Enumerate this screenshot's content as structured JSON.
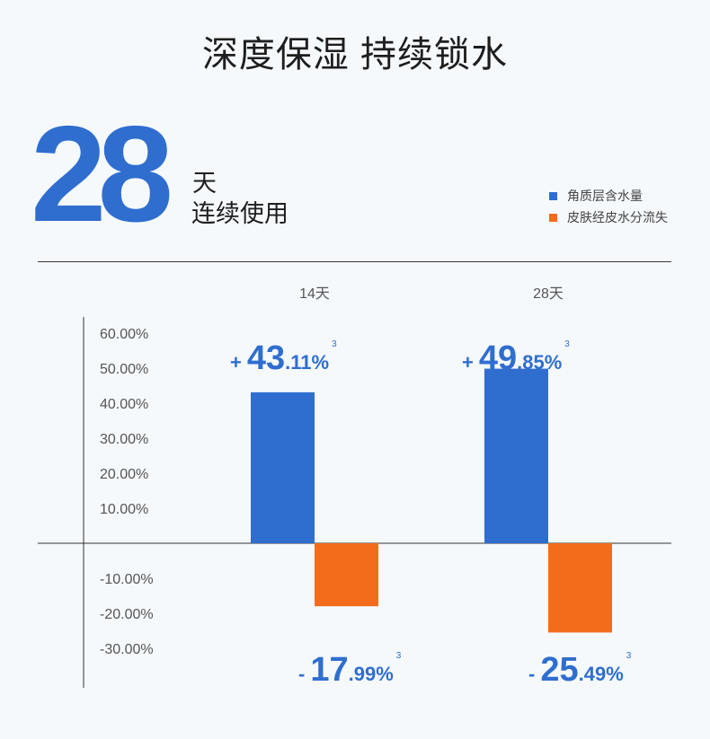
{
  "headline": "深度保湿 持续锁水",
  "days_number": "28",
  "days_unit": "天",
  "days_caption": "连续使用",
  "colors": {
    "blue": "#2f6ecf",
    "orange": "#f26c1c"
  },
  "chart_data": {
    "type": "bar",
    "categories": [
      "14天",
      "28天"
    ],
    "series": [
      {
        "name": "角质层含水量",
        "values": [
          43.11,
          49.85
        ],
        "color": "#2f6ecf"
      },
      {
        "name": "皮肤经皮水分流失",
        "values": [
          -17.99,
          -25.49
        ],
        "color": "#f26c1c"
      }
    ],
    "ylim": [
      -40,
      60
    ],
    "yticks": [
      "60.00%",
      "50.00%",
      "40.00%",
      "30.00%",
      "20.00%",
      "10.00%",
      "-10.00%",
      "-20.00%",
      "-30.00%"
    ],
    "ytick_values": [
      60,
      50,
      40,
      30,
      20,
      10,
      -10,
      -20,
      -30
    ],
    "legend_position": "top-right",
    "data_labels": [
      {
        "sign": "+",
        "int": "43",
        "dec": ".11",
        "pct": "%",
        "sup": "3"
      },
      {
        "sign": "+",
        "int": "49",
        "dec": ".85",
        "pct": "%",
        "sup": "3"
      },
      {
        "sign": "-",
        "int": "17",
        "dec": ".99",
        "pct": "%",
        "sup": "3"
      },
      {
        "sign": "-",
        "int": "25",
        "dec": ".49",
        "pct": "%",
        "sup": "3"
      }
    ]
  }
}
